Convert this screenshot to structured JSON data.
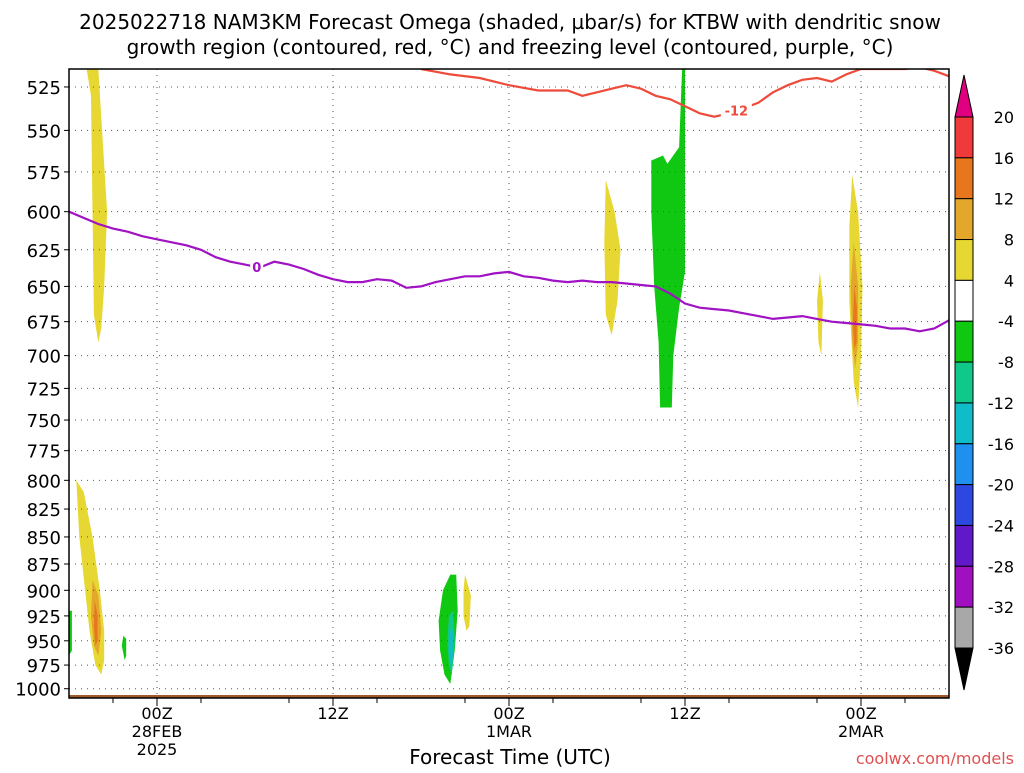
{
  "title_line1": "2025022718 NAM3KM Forecast Omega (shaded, µbar/s) for KTBW with dendritic snow",
  "title_line2": "growth region (contoured, red, °C) and freezing level (contoured, purple, °C)",
  "credit": "coolwx.com/models",
  "chart_data": {
    "type": "heatmap",
    "title": "2025022718 NAM3KM Forecast Omega (shaded, µbar/s) for KTBW with dendritic snow growth region (contoured, red, °C) and freezing level (contoured, purple, °C)",
    "xlabel": "Forecast Time (UTC)",
    "ylabel": "",
    "xlim_hours": [
      0,
      60
    ],
    "ylim_hPa": [
      1010,
      515
    ],
    "y_scale": "log",
    "grid": true,
    "y_ticks": [
      525,
      550,
      575,
      600,
      625,
      650,
      675,
      700,
      725,
      750,
      775,
      800,
      825,
      850,
      875,
      900,
      925,
      950,
      975,
      1000
    ],
    "y_tick_labels": [
      "525",
      "550",
      "575",
      "600",
      "625",
      "650",
      "675",
      "700",
      "725",
      "750",
      "775",
      "800",
      "825",
      "850",
      "875",
      "900",
      "925",
      "950",
      "975",
      "1000"
    ],
    "x_ticks": [
      {
        "hour": 6,
        "label": "00Z",
        "sub1": "28FEB",
        "sub2": "2025"
      },
      {
        "hour": 18,
        "label": "12Z",
        "sub1": "",
        "sub2": ""
      },
      {
        "hour": 30,
        "label": "00Z",
        "sub1": "1MAR",
        "sub2": ""
      },
      {
        "hour": 42,
        "label": "12Z",
        "sub1": "",
        "sub2": ""
      },
      {
        "hour": 54,
        "label": "00Z",
        "sub1": "2MAR",
        "sub2": ""
      }
    ],
    "x_minor_ticks": [
      3,
      9,
      15,
      21,
      27,
      33,
      39,
      45,
      51,
      57
    ],
    "colorbar": {
      "labels": [
        "20",
        "16",
        "12",
        "8",
        "4",
        "-4",
        "-8",
        "-12",
        "-16",
        "-20",
        "-24",
        "-28",
        "-32",
        "-36"
      ],
      "colors": [
        "#e0007f",
        "#f0393a",
        "#e8761d",
        "#e2a72b",
        "#e6d732",
        "#ffffff",
        "#10c812",
        "#10c88a",
        "#10bcc8",
        "#1e90f0",
        "#2c48e0",
        "#6018c8",
        "#a010c0",
        "#a8a8a8",
        "#000000"
      ]
    },
    "fields": [
      {
        "name": "omega_4_8",
        "color": "#e6d732",
        "regions": [
          [
            [
              1.2,
              515
            ],
            [
              2.0,
              515
            ],
            [
              2.6,
              600
            ],
            [
              2.4,
              650
            ],
            [
              2.2,
              680
            ],
            [
              2.0,
              690
            ],
            [
              1.7,
              670
            ],
            [
              1.6,
              600
            ],
            [
              1.5,
              530
            ]
          ],
          [
            [
              0.5,
              800
            ],
            [
              1.0,
              810
            ],
            [
              1.6,
              850
            ],
            [
              2.1,
              900
            ],
            [
              2.4,
              940
            ],
            [
              2.4,
              970
            ],
            [
              2.2,
              985
            ],
            [
              1.8,
              975
            ],
            [
              1.4,
              940
            ],
            [
              1.1,
              900
            ],
            [
              0.7,
              850
            ]
          ],
          [
            [
              36.6,
              580
            ],
            [
              37.2,
              600
            ],
            [
              37.6,
              625
            ],
            [
              37.4,
              660
            ],
            [
              37.0,
              685
            ],
            [
              36.6,
              670
            ],
            [
              36.5,
              620
            ]
          ],
          [
            [
              53.4,
              577
            ],
            [
              53.8,
              600
            ],
            [
              54.1,
              650
            ],
            [
              54.0,
              700
            ],
            [
              53.8,
              740
            ],
            [
              53.5,
              720
            ],
            [
              53.2,
              660
            ],
            [
              53.2,
              610
            ]
          ],
          [
            [
              27.0,
              885
            ],
            [
              27.4,
              905
            ],
            [
              27.3,
              935
            ],
            [
              27.1,
              940
            ],
            [
              26.9,
              925
            ],
            [
              26.9,
              900
            ]
          ],
          [
            [
              51.2,
              640
            ],
            [
              51.4,
              660
            ],
            [
              51.3,
              700
            ],
            [
              51.1,
              690
            ],
            [
              51.0,
              660
            ]
          ]
        ]
      },
      {
        "name": "omega_8_12",
        "color": "#e2a72b",
        "regions": [
          [
            [
              1.6,
              890
            ],
            [
              2.0,
              905
            ],
            [
              2.2,
              940
            ],
            [
              2.0,
              965
            ],
            [
              1.7,
              955
            ],
            [
              1.5,
              925
            ]
          ],
          [
            [
              53.5,
              620
            ],
            [
              53.8,
              650
            ],
            [
              53.8,
              690
            ],
            [
              53.6,
              710
            ],
            [
              53.4,
              690
            ],
            [
              53.3,
              650
            ]
          ]
        ]
      },
      {
        "name": "omega_12_16",
        "color": "#e8761d",
        "regions": [
          [
            [
              1.75,
              910
            ],
            [
              1.95,
              925
            ],
            [
              1.95,
              950
            ],
            [
              1.8,
              955
            ],
            [
              1.7,
              935
            ]
          ],
          [
            [
              53.55,
              650
            ],
            [
              53.72,
              665
            ],
            [
              53.7,
              690
            ],
            [
              53.55,
              695
            ],
            [
              53.45,
              675
            ]
          ]
        ]
      },
      {
        "name": "omega_-4_-8",
        "color": "#10c812",
        "regions": [
          [
            [
              39.7,
              568
            ],
            [
              40.5,
              565
            ],
            [
              40.8,
              570
            ],
            [
              41.6,
              560
            ],
            [
              41.8,
              515
            ],
            [
              42.0,
              515
            ],
            [
              42.0,
              640
            ],
            [
              41.6,
              665
            ],
            [
              41.2,
              700
            ],
            [
              41.1,
              740
            ],
            [
              40.3,
              740
            ],
            [
              40.2,
              690
            ],
            [
              39.9,
              650
            ],
            [
              39.7,
              600
            ]
          ],
          [
            [
              25.5,
              900
            ],
            [
              26.0,
              885
            ],
            [
              26.4,
              885
            ],
            [
              26.5,
              920
            ],
            [
              26.3,
              960
            ],
            [
              26.0,
              995
            ],
            [
              25.6,
              985
            ],
            [
              25.3,
              960
            ],
            [
              25.2,
              930
            ]
          ],
          [
            [
              3.7,
              945
            ],
            [
              3.9,
              948
            ],
            [
              3.9,
              965
            ],
            [
              3.8,
              970
            ],
            [
              3.6,
              955
            ]
          ],
          [
            [
              0.0,
              920
            ],
            [
              0.2,
              920
            ],
            [
              0.2,
              960
            ],
            [
              0.0,
              965
            ]
          ]
        ]
      },
      {
        "name": "omega_-8_-12",
        "color": "#10c88a",
        "regions": [
          [
            [
              25.9,
              925
            ],
            [
              26.2,
              920
            ],
            [
              26.3,
              950
            ],
            [
              26.1,
              985
            ],
            [
              25.9,
              975
            ],
            [
              25.8,
              950
            ]
          ]
        ]
      },
      {
        "name": "omega_-12_-16",
        "color": "#10bcc8",
        "regions": [
          [
            [
              26.0,
              940
            ],
            [
              26.2,
              938
            ],
            [
              26.2,
              965
            ],
            [
              26.0,
              975
            ],
            [
              25.95,
              955
            ]
          ]
        ]
      }
    ],
    "series": [
      {
        "name": "-12",
        "color": "#ee4b3a",
        "label_value": "-12",
        "label_at_hour": 45.5,
        "x": [
          24,
          26,
          28,
          30,
          32,
          34,
          35,
          36,
          37,
          38,
          39,
          40,
          41,
          42,
          43,
          44,
          45,
          46,
          47,
          48,
          49,
          50,
          51,
          52,
          53,
          54,
          55,
          56,
          57,
          58,
          59,
          60
        ],
        "y": [
          515,
          518,
          520,
          524,
          527,
          527,
          530,
          528,
          526,
          524,
          526,
          530,
          532,
          536,
          540,
          542,
          540,
          537,
          534,
          528,
          524,
          521,
          520,
          522,
          518,
          515,
          515,
          515,
          515,
          514,
          516,
          519
        ]
      },
      {
        "name": "0",
        "color": "#a012c4",
        "label_value": "0",
        "label_at_hour": 12.8,
        "x": [
          0,
          1,
          2,
          3,
          4,
          5,
          6,
          7,
          8,
          9,
          10,
          11,
          12,
          13,
          14,
          15,
          16,
          17,
          18,
          19,
          20,
          21,
          22,
          23,
          24,
          25,
          26,
          27,
          28,
          29,
          30,
          31,
          32,
          33,
          34,
          35,
          36,
          37,
          38,
          39,
          40,
          41,
          42,
          43,
          44,
          45,
          46,
          47,
          48,
          49,
          50,
          51,
          52,
          53,
          54,
          55,
          56,
          57,
          58,
          59,
          60
        ],
        "y": [
          600,
          604,
          608,
          611,
          613,
          616,
          618,
          620,
          622,
          625,
          630,
          633,
          635,
          637,
          633,
          635,
          638,
          642,
          645,
          647,
          647,
          645,
          646,
          651,
          650,
          647,
          645,
          643,
          643,
          641,
          640,
          643,
          644,
          646,
          647,
          646,
          647,
          647,
          648,
          649,
          650,
          655,
          662,
          665,
          666,
          667,
          669,
          671,
          673,
          672,
          671,
          673,
          675,
          676,
          677,
          678,
          680,
          680,
          682,
          680,
          674
        ]
      }
    ],
    "terrain": {
      "color": "#a05a2c",
      "x": [
        0,
        2,
        3,
        4,
        6,
        10,
        15,
        18,
        20,
        24,
        25,
        26,
        27,
        28,
        30,
        32,
        36,
        40,
        44,
        48,
        49,
        50,
        52,
        54,
        55,
        56,
        60
      ],
      "top_hPa": [
        1012,
        1012,
        1010,
        1011,
        1012,
        1012,
        1012,
        1012,
        1013,
        1012,
        1010,
        1008,
        1008,
        1010,
        1012,
        1013,
        1013,
        1013,
        1013,
        1012,
        1010,
        1008,
        1008,
        1008,
        1010,
        1012,
        1012
      ]
    }
  }
}
